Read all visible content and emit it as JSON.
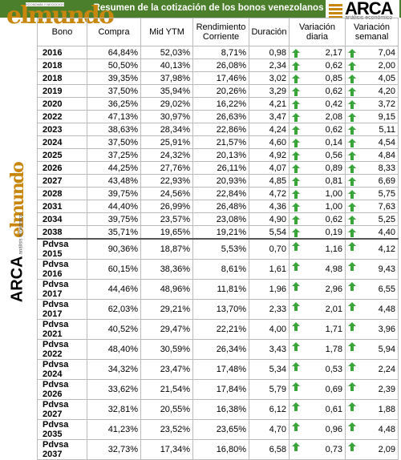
{
  "header": {
    "title": "Resumen de la cotización de los bonos venezolanos",
    "logo_left": "elmundo",
    "logo_left_tag": "ECONOMÍA Y NEGOCIOS",
    "logo_right": "ARCA",
    "logo_right_tag": "análisis económico"
  },
  "table": {
    "columns": [
      "Bono",
      "Compra",
      "Mid YTM",
      "Rendimiento Corriente",
      "Duración",
      "Variación diaria",
      "Variación semanal"
    ],
    "rows": [
      [
        "2016",
        "64,84%",
        "52,03%",
        "8,71%",
        "0,98",
        "2,17",
        "7,04"
      ],
      [
        "2018",
        "50,50%",
        "40,13%",
        "26,08%",
        "2,34",
        "0,62",
        "2,00"
      ],
      [
        "2018",
        "39,35%",
        "37,98%",
        "17,46%",
        "3,02",
        "0,85",
        "4,05"
      ],
      [
        "2019",
        "37,50%",
        "35,94%",
        "20,26%",
        "3,29",
        "0,62",
        "4,20"
      ],
      [
        "2020",
        "36,25%",
        "29,02%",
        "16,22%",
        "4,21",
        "0,42",
        "3,72"
      ],
      [
        "2022",
        "47,13%",
        "30,97%",
        "26,63%",
        "3,47",
        "2,08",
        "9,15"
      ],
      [
        "2023",
        "38,63%",
        "28,34%",
        "22,86%",
        "4,24",
        "0,62",
        "5,11"
      ],
      [
        "2024",
        "37,50%",
        "25,91%",
        "21,57%",
        "4,60",
        "0,14",
        "4,54"
      ],
      [
        "2025",
        "37,25%",
        "24,32%",
        "20,13%",
        "4,92",
        "0,56",
        "4,84"
      ],
      [
        "2026",
        "44,25%",
        "27,76%",
        "26,11%",
        "4,07",
        "0,89",
        "8,33"
      ],
      [
        "2027",
        "43,48%",
        "22,93%",
        "20,93%",
        "4,85",
        "0,81",
        "6,69"
      ],
      [
        "2028",
        "39,75%",
        "24,56%",
        "22,84%",
        "4,72",
        "1,00",
        "5,75"
      ],
      [
        "2031",
        "44,40%",
        "26,99%",
        "26,48%",
        "4,36",
        "1,00",
        "7,63"
      ],
      [
        "2034",
        "39,75%",
        "23,57%",
        "23,08%",
        "4,90",
        "0,62",
        "5,25"
      ],
      [
        "2038",
        "35,71%",
        "19,65%",
        "19,21%",
        "5,54",
        "0,19",
        "4,40"
      ],
      [
        "Pdvsa 2015",
        "90,36%",
        "18,87%",
        "5,53%",
        "0,70",
        "1,16",
        "4,12"
      ],
      [
        "Pdvsa 2016",
        "60,15%",
        "38,36%",
        "8,61%",
        "1,61",
        "4,98",
        "9,43"
      ],
      [
        "Pdvsa 2017",
        "44,46%",
        "48,96%",
        "11,81%",
        "1,96",
        "2,96",
        "6,55"
      ],
      [
        "Pdvsa 2017",
        "62,03%",
        "29,21%",
        "13,70%",
        "2,33",
        "2,01",
        "4,48"
      ],
      [
        "Pdvsa 2021",
        "40,52%",
        "29,47%",
        "22,21%",
        "4,00",
        "1,71",
        "3,96"
      ],
      [
        "Pdvsa 2022",
        "48,40%",
        "30,59%",
        "26,34%",
        "3,43",
        "1,78",
        "5,94"
      ],
      [
        "Pdvsa 2024",
        "34,32%",
        "23,47%",
        "17,48%",
        "5,34",
        "0,53",
        "2,24"
      ],
      [
        "Pdvsa 2026",
        "33,62%",
        "21,54%",
        "17,84%",
        "5,79",
        "0,69",
        "2,39"
      ],
      [
        "Pdvsa 2027",
        "32,81%",
        "20,55%",
        "16,38%",
        "6,12",
        "0,61",
        "1,88"
      ],
      [
        "Pdvsa 2035",
        "41,23%",
        "23,52%",
        "23,65%",
        "4,70",
        "0,96",
        "4,48"
      ],
      [
        "Pdvsa 2037",
        "32,73%",
        "17,34%",
        "16,80%",
        "6,58",
        "0,73",
        "2,09"
      ]
    ]
  }
}
